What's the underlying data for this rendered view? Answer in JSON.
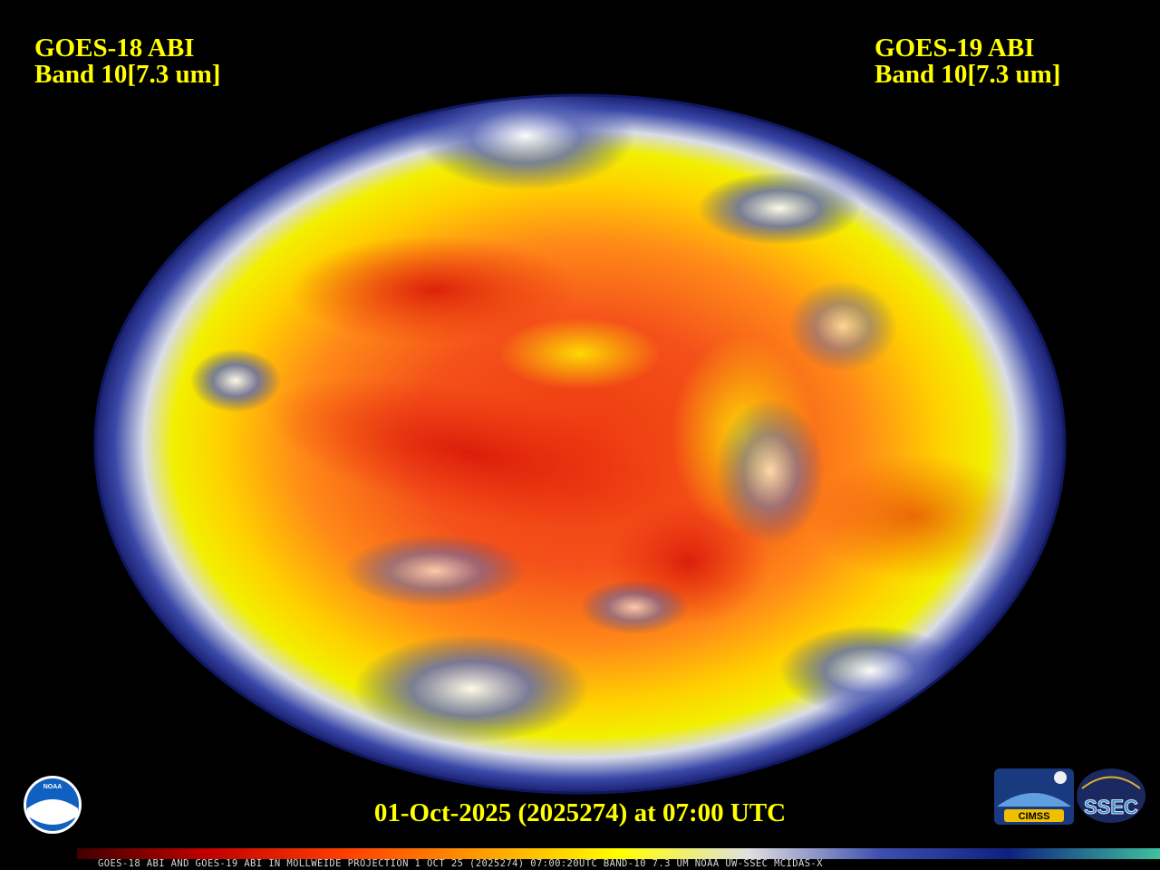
{
  "header": {
    "left": {
      "line1": "GOES-18 ABI",
      "line2": "Band 10[7.3 um]"
    },
    "right": {
      "line1": "GOES-19 ABI",
      "line2": "Band 10[7.3 um]"
    }
  },
  "timestamp": "01-Oct-2025 (2025274) at 07:00 UTC",
  "caption": "GOES-18 ABI AND GOES-19 ABI IN MOLLWEIDE PROJECTION 1 OCT 25 (2025274) 07:00:20UTC BAND-10 7.3 UM NOAA UW-SSEC MCIDAS-X",
  "logos": {
    "noaa": "NOAA",
    "cimss": "CIMSS",
    "ssec": "SSEC"
  }
}
